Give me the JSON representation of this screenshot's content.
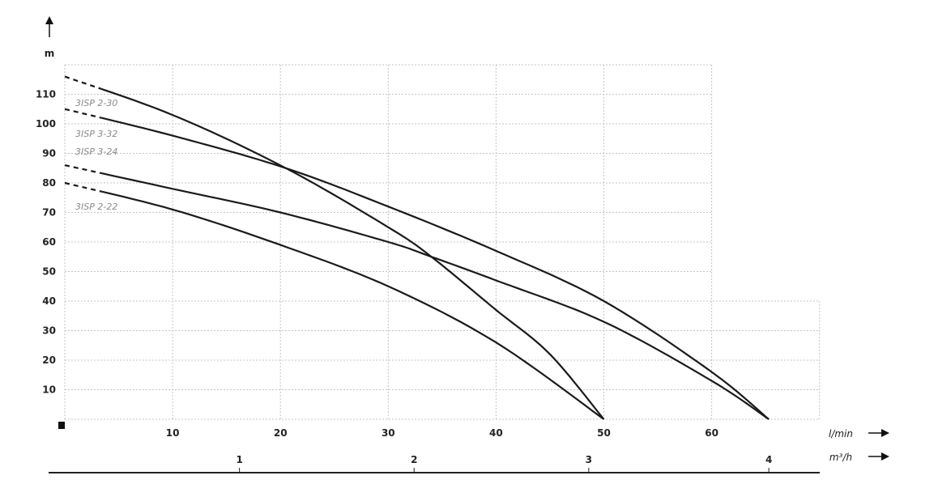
{
  "chart_data": {
    "type": "line",
    "ylabel": "m",
    "xlabel": "l/min",
    "x2label": "m³/h",
    "xlim": [
      0,
      70
    ],
    "ylim": [
      0,
      120
    ],
    "x_ticks": [
      10,
      20,
      30,
      40,
      50,
      60
    ],
    "y_ticks": [
      10,
      20,
      30,
      40,
      50,
      60,
      70,
      80,
      90,
      100,
      110
    ],
    "x2_ticks": [
      1,
      2,
      3,
      4
    ],
    "grid": true,
    "line_color": "#1a1a1a",
    "label_color": "#8a8a8a",
    "grid_color": "#c4c4c4",
    "series": [
      {
        "name": "3ISP 2-30",
        "dashed_until": 3.5,
        "x": [
          0,
          10,
          20.5,
          30,
          34,
          40,
          45,
          50
        ],
        "y": [
          116,
          103,
          85,
          65,
          55,
          37,
          22,
          0
        ]
      },
      {
        "name": "3ISP 3-32",
        "dashed_until": 3.5,
        "x": [
          0,
          10,
          20.5,
          30,
          40,
          50,
          60,
          65.3
        ],
        "y": [
          105,
          96,
          85,
          72,
          57,
          40,
          16,
          0
        ]
      },
      {
        "name": "3ISP 3-24",
        "dashed_until": 3.5,
        "x": [
          0,
          10,
          20,
          30,
          34,
          40,
          50,
          60,
          65.3
        ],
        "y": [
          86,
          78,
          70,
          60,
          55,
          47,
          33,
          13,
          0
        ]
      },
      {
        "name": "3ISP 2-22",
        "dashed_until": 3.5,
        "x": [
          0,
          10,
          20,
          30,
          40,
          50
        ],
        "y": [
          80,
          71,
          59,
          45,
          26,
          0
        ]
      }
    ]
  }
}
